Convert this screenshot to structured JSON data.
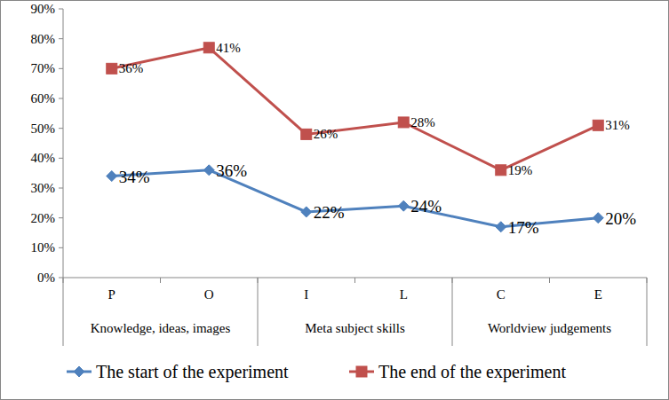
{
  "chart_data": {
    "type": "line",
    "stacked": true,
    "data_labels": true,
    "grid": false,
    "legend": "bottom",
    "categories": [
      "P",
      "O",
      "I",
      "L",
      "C",
      "E"
    ],
    "category_groups": [
      {
        "label": "Knowledge, ideas, images",
        "categories": [
          "P",
          "O"
        ]
      },
      {
        "label": "Meta subject skills",
        "categories": [
          "I",
          "L"
        ]
      },
      {
        "label": "Worldview judgements",
        "categories": [
          "C",
          "E"
        ]
      }
    ],
    "ylim": [
      0,
      90
    ],
    "yticks": [
      {
        "value": 0,
        "label": "0%"
      },
      {
        "value": 10,
        "label": "10%"
      },
      {
        "value": 20,
        "label": "20%"
      },
      {
        "value": 30,
        "label": "30%"
      },
      {
        "value": 40,
        "label": "40%"
      },
      {
        "value": 50,
        "label": "50%"
      },
      {
        "value": 60,
        "label": "60%"
      },
      {
        "value": 70,
        "label": "70%"
      },
      {
        "value": 80,
        "label": "80%"
      },
      {
        "value": 90,
        "label": "90%"
      }
    ],
    "series": [
      {
        "name": "The start of the experiment",
        "color": "#4f81bd",
        "marker": "diamond",
        "values": [
          34,
          36,
          22,
          24,
          17,
          20
        ],
        "value_labels": [
          "34%",
          "36%",
          "22%",
          "24%",
          "17%",
          "20%"
        ]
      },
      {
        "name": "The end of the experiment",
        "color": "#c0504d",
        "marker": "square",
        "values": [
          36,
          41,
          26,
          28,
          19,
          31
        ],
        "value_labels": [
          "36%",
          "41%",
          "26%",
          "28%",
          "19%",
          "31%"
        ]
      }
    ]
  }
}
